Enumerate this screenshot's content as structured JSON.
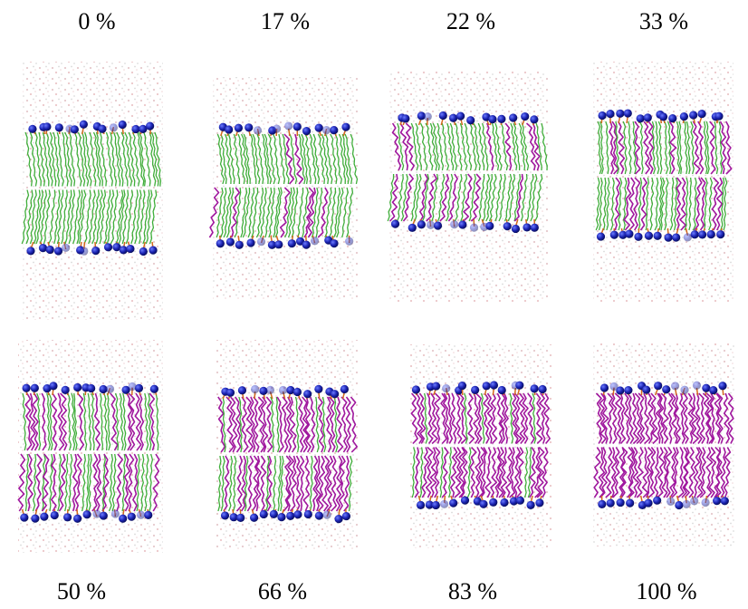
{
  "panels": [
    {
      "label": "0 %"
    },
    {
      "label": "17 %"
    },
    {
      "label": "22 %"
    },
    {
      "label": "33 %"
    },
    {
      "label": "50 %"
    },
    {
      "label": "66 %"
    },
    {
      "label": "83 %"
    },
    {
      "label": "100 %"
    }
  ]
}
